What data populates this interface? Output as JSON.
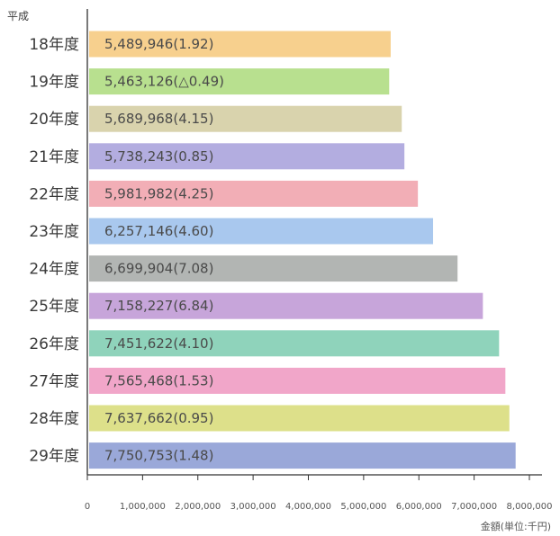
{
  "chart_data": {
    "type": "bar",
    "orientation": "horizontal",
    "era_label": "平成",
    "unit_label": "金額(単位:千円)",
    "categories": [
      "18年度",
      "19年度",
      "20年度",
      "21年度",
      "22年度",
      "23年度",
      "24年度",
      "25年度",
      "26年度",
      "27年度",
      "28年度",
      "29年度"
    ],
    "values": [
      5489946,
      5463126,
      5689968,
      5738243,
      5981982,
      6257146,
      6699904,
      7158227,
      7451622,
      7565468,
      7637662,
      7750753
    ],
    "bar_labels": [
      "5,489,946(1.92)",
      "5,463,126(△0.49)",
      "5,689,968(4.15)",
      "5,738,243(0.85)",
      "5,981,982(4.25)",
      "6,257,146(4.60)",
      "6,699,904(7.08)",
      "7,158,227(6.84)",
      "7,451,622(4.10)",
      "7,565,468(1.53)",
      "7,637,662(0.95)",
      "7,750,753(1.48)"
    ],
    "colors": [
      "#f7d08e",
      "#b8e08f",
      "#d9d3ad",
      "#b3ade0",
      "#f2aeb6",
      "#a9c8ee",
      "#b2b5b3",
      "#c7a5da",
      "#8fd3bb",
      "#f1a6c9",
      "#dde08a",
      "#9aa8d9"
    ],
    "x_ticks": [
      0,
      1000000,
      2000000,
      3000000,
      4000000,
      5000000,
      6000000,
      7000000,
      8000000
    ],
    "x_tick_labels": [
      "0",
      "1,000,000",
      "2,000,000",
      "3,000,000",
      "4,000,000",
      "5,000,000",
      "6,000,000",
      "7,000,000",
      "8,000,000"
    ],
    "xlim": [
      0,
      8000000
    ],
    "grid": false
  }
}
